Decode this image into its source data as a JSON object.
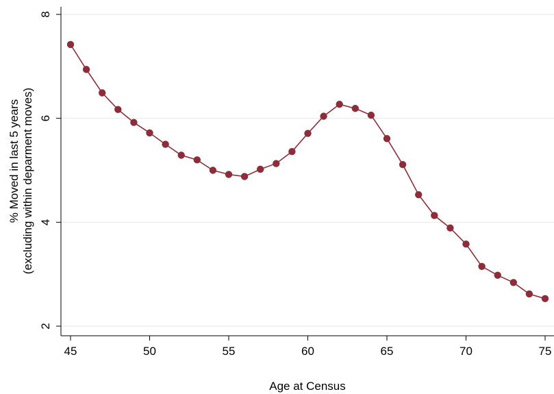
{
  "chart_data": {
    "type": "line",
    "xlabel": "Age at Census",
    "ylabel_lines": [
      "% Moved in last 5 years",
      "(excluding within deparment moves)"
    ],
    "xlim": [
      45,
      75
    ],
    "ylim": [
      2,
      8
    ],
    "xticks": [
      45,
      50,
      55,
      60,
      65,
      70,
      75
    ],
    "yticks": [
      2,
      4,
      6,
      8
    ],
    "grid": "horizontal",
    "line_color": "#8b2e3a",
    "marker_color": "#8b2e3a",
    "series": [
      {
        "x": [
          45,
          46,
          47,
          48,
          49,
          50,
          51,
          52,
          53,
          54,
          55,
          56,
          57,
          58,
          59,
          60,
          61,
          62,
          63,
          64,
          65,
          66,
          67,
          68,
          69,
          70,
          71,
          72,
          73,
          74,
          75
        ],
        "values": [
          7.42,
          6.94,
          6.49,
          6.17,
          5.92,
          5.72,
          5.5,
          5.29,
          5.2,
          5.0,
          4.92,
          4.88,
          5.02,
          5.13,
          5.36,
          5.71,
          6.04,
          6.27,
          6.19,
          6.06,
          5.61,
          5.11,
          4.53,
          4.13,
          3.89,
          3.58,
          3.15,
          2.98,
          2.84,
          2.62,
          2.53
        ]
      }
    ]
  }
}
